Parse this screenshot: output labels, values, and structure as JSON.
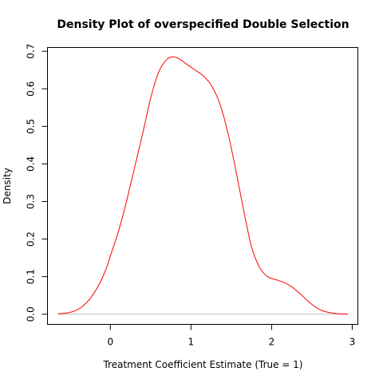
{
  "chart_data": {
    "type": "line",
    "title": "Density Plot of overspecified Double Selection",
    "xlabel": "Treatment Coefficient Estimate (True = 1)",
    "ylabel": "Density",
    "xlim": [
      -0.78,
      3.07
    ],
    "ylim": [
      -0.027,
      0.71
    ],
    "x_ticks": [
      0,
      1,
      2,
      3
    ],
    "y_ticks": [
      0.0,
      0.1,
      0.2,
      0.3,
      0.4,
      0.5,
      0.6,
      0.7
    ],
    "x_tick_labels": [
      "0",
      "1",
      "2",
      "3"
    ],
    "y_tick_labels": [
      "0.0",
      "0.1",
      "0.2",
      "0.3",
      "0.4",
      "0.5",
      "0.6",
      "0.7"
    ],
    "zero_line": true,
    "grid": false,
    "line_color": "#ff0000",
    "series": [
      {
        "x": [
          -0.65,
          -0.55,
          -0.45,
          -0.35,
          -0.25,
          -0.15,
          -0.05,
          0.0,
          0.1,
          0.2,
          0.3,
          0.4,
          0.5,
          0.6,
          0.7,
          0.78,
          0.85,
          0.95,
          1.05,
          1.15,
          1.25,
          1.35,
          1.45,
          1.55,
          1.65,
          1.75,
          1.85,
          1.95,
          2.05,
          2.15,
          2.25,
          2.35,
          2.45,
          2.55,
          2.65,
          2.75,
          2.85,
          2.95
        ],
        "y": [
          0.001,
          0.003,
          0.008,
          0.02,
          0.042,
          0.075,
          0.122,
          0.155,
          0.22,
          0.3,
          0.39,
          0.48,
          0.575,
          0.645,
          0.678,
          0.685,
          0.68,
          0.665,
          0.65,
          0.635,
          0.61,
          0.565,
          0.49,
          0.39,
          0.28,
          0.18,
          0.125,
          0.1,
          0.092,
          0.085,
          0.073,
          0.055,
          0.035,
          0.018,
          0.008,
          0.003,
          0.001,
          0.0
        ]
      }
    ]
  }
}
